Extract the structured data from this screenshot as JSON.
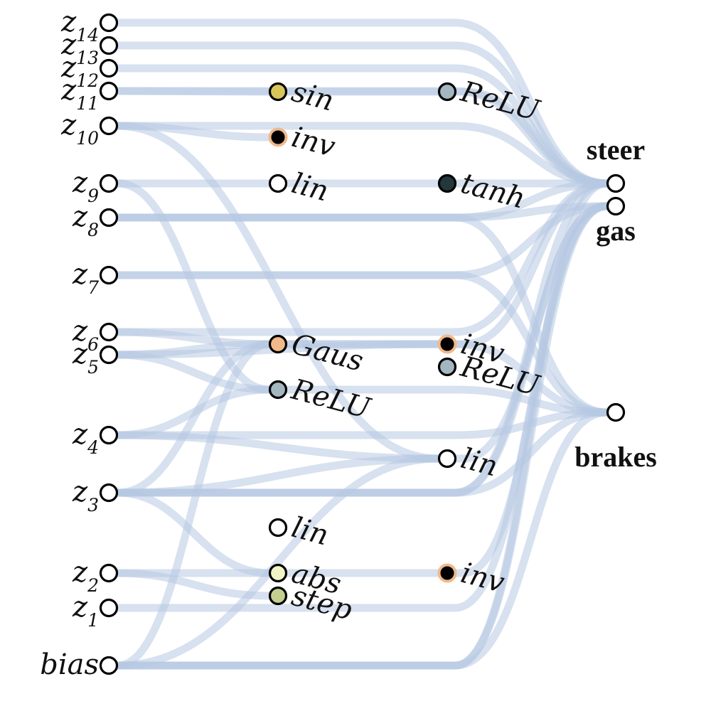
{
  "colors": {
    "edge": "#b7c9e1",
    "node_stroke": "#000000",
    "empty": "#ffffff",
    "sin": "#d9c65a",
    "relu": "#a4b6c0",
    "tanh": "#22383b",
    "gaus": "#f0b98a",
    "abs": "#f3f3c8",
    "step": "#c3cf8e",
    "inv_fill": "#000000",
    "inv_ring": "#f0b98a"
  },
  "inputs": [
    {
      "id": "z14",
      "base": "z",
      "sub": "14"
    },
    {
      "id": "z13",
      "base": "z",
      "sub": "13"
    },
    {
      "id": "z12",
      "base": "z",
      "sub": "12"
    },
    {
      "id": "z11",
      "base": "z",
      "sub": "11"
    },
    {
      "id": "z10",
      "base": "z",
      "sub": "10"
    },
    {
      "id": "z9",
      "base": "z",
      "sub": "9"
    },
    {
      "id": "z8",
      "base": "z",
      "sub": "8"
    },
    {
      "id": "z7",
      "base": "z",
      "sub": "7"
    },
    {
      "id": "z6",
      "base": "z",
      "sub": "6"
    },
    {
      "id": "z5",
      "base": "z",
      "sub": "5"
    },
    {
      "id": "z4",
      "base": "z",
      "sub": "4"
    },
    {
      "id": "z3",
      "base": "z",
      "sub": "3"
    },
    {
      "id": "z2",
      "base": "z",
      "sub": "2"
    },
    {
      "id": "z1",
      "base": "z",
      "sub": "1"
    },
    {
      "id": "bias",
      "base": "bias",
      "sub": ""
    }
  ],
  "hidden1": [
    {
      "id": "h1_sin",
      "label": "sin",
      "kind": "sin"
    },
    {
      "id": "h1_inv",
      "label": "inv",
      "kind": "inv"
    },
    {
      "id": "h1_lin",
      "label": "lin",
      "kind": "empty"
    },
    {
      "id": "h1_gaus",
      "label": "Gaus",
      "kind": "gaus"
    },
    {
      "id": "h1_relu",
      "label": "ReLU",
      "kind": "relu"
    },
    {
      "id": "h1_lin2",
      "label": "lin",
      "kind": "empty"
    },
    {
      "id": "h1_abs",
      "label": "abs",
      "kind": "abs"
    },
    {
      "id": "h1_step",
      "label": "step",
      "kind": "step"
    }
  ],
  "hidden2": [
    {
      "id": "h2_relu",
      "label": "ReLU",
      "kind": "relu"
    },
    {
      "id": "h2_tanh",
      "label": "tanh",
      "kind": "tanh"
    },
    {
      "id": "h2_inv",
      "label": "inv",
      "kind": "inv"
    },
    {
      "id": "h2_relu2",
      "label": "ReLU",
      "kind": "relu"
    },
    {
      "id": "h2_lin",
      "label": "lin",
      "kind": "empty"
    },
    {
      "id": "h2_inv2",
      "label": "inv",
      "kind": "inv"
    }
  ],
  "outputs": [
    {
      "id": "steer",
      "label": "steer"
    },
    {
      "id": "gas",
      "label": "gas"
    },
    {
      "id": "brakes",
      "label": "brakes"
    }
  ],
  "edges": [
    [
      "z14",
      "steer"
    ],
    [
      "z13",
      "steer"
    ],
    [
      "z12",
      "steer"
    ],
    [
      "z11",
      "steer"
    ],
    [
      "z11",
      "h1_sin"
    ],
    [
      "h1_sin",
      "h2_relu"
    ],
    [
      "h2_relu",
      "steer"
    ],
    [
      "z10",
      "h1_inv"
    ],
    [
      "z10",
      "steer"
    ],
    [
      "z10",
      "h2_lin"
    ],
    [
      "z9",
      "h1_lin"
    ],
    [
      "h1_lin",
      "h2_tanh"
    ],
    [
      "h2_tanh",
      "steer"
    ],
    [
      "z9",
      "h1_relu"
    ],
    [
      "z8",
      "steer"
    ],
    [
      "z8",
      "gas"
    ],
    [
      "z8",
      "brakes"
    ],
    [
      "z7",
      "brakes"
    ],
    [
      "z7",
      "gas"
    ],
    [
      "z6",
      "h1_gaus"
    ],
    [
      "z6",
      "steer"
    ],
    [
      "z5",
      "h1_relu"
    ],
    [
      "z5",
      "h2_inv"
    ],
    [
      "z5",
      "h1_gaus"
    ],
    [
      "h1_gaus",
      "h2_inv"
    ],
    [
      "h1_gaus",
      "brakes"
    ],
    [
      "h1_relu",
      "brakes"
    ],
    [
      "z4",
      "h1_relu"
    ],
    [
      "z4",
      "h2_lin"
    ],
    [
      "z4",
      "brakes"
    ],
    [
      "z3",
      "h1_gaus"
    ],
    [
      "z3",
      "h2_lin"
    ],
    [
      "z3",
      "h1_abs"
    ],
    [
      "z3",
      "steer"
    ],
    [
      "z3",
      "gas"
    ],
    [
      "z3",
      "brakes"
    ],
    [
      "z2",
      "h1_abs"
    ],
    [
      "z2",
      "h1_step"
    ],
    [
      "h1_abs",
      "h2_inv2"
    ],
    [
      "h2_inv2",
      "gas"
    ],
    [
      "h2_inv",
      "steer"
    ],
    [
      "h2_lin",
      "gas"
    ],
    [
      "z1",
      "gas"
    ],
    [
      "bias",
      "h1_gaus"
    ],
    [
      "bias",
      "h2_lin"
    ],
    [
      "bias",
      "gas"
    ],
    [
      "bias",
      "brakes"
    ],
    [
      "bias",
      "steer"
    ]
  ]
}
